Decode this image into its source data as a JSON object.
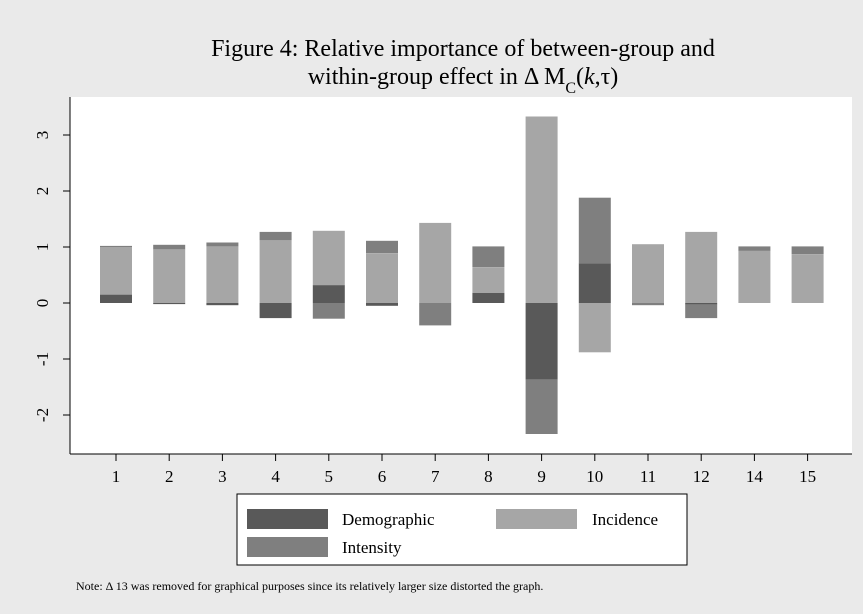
{
  "chart_data": {
    "type": "bar",
    "stacked": true,
    "title": "Figure 4: Relative importance of between-group and",
    "title_line2_prefix": "within-group effect in Δ M",
    "title_line2_sub": "C",
    "title_line2_args_open": "(",
    "title_line2_k": "k",
    "title_line2_args_rest": ",τ)",
    "categories": [
      "1",
      "2",
      "3",
      "4",
      "5",
      "6",
      "7",
      "8",
      "9",
      "10",
      "11",
      "12",
      "14",
      "15"
    ],
    "series": [
      {
        "name": "Demographic",
        "color": "#595959",
        "values": [
          0.15,
          -0.02,
          -0.04,
          -0.27,
          0.32,
          -0.05,
          0.0,
          0.18,
          -1.37,
          0.71,
          0.0,
          -0.03,
          0.0,
          0.0
        ]
      },
      {
        "name": "Incidence",
        "color": "#a6a6a6",
        "values": [
          0.85,
          0.96,
          1.01,
          1.12,
          0.97,
          0.89,
          1.43,
          0.46,
          3.33,
          -0.88,
          1.05,
          1.27,
          0.93,
          0.87
        ]
      },
      {
        "name": "Intensity",
        "color": "#7f7f7f",
        "values": [
          0.02,
          0.08,
          0.07,
          0.15,
          -0.28,
          0.22,
          -0.4,
          0.37,
          -0.97,
          1.17,
          -0.04,
          -0.24,
          0.08,
          0.14
        ]
      }
    ],
    "ylim": [
      -2.7,
      3.4
    ],
    "yticks": [
      "-2",
      "-1",
      "0",
      "1",
      "2",
      "3"
    ],
    "grid": false,
    "legend_position": "bottom",
    "xlabel": "",
    "ylabel": ""
  },
  "note": "Note: Δ 13 was removed for graphical purposes since its relatively larger size distorted the graph."
}
